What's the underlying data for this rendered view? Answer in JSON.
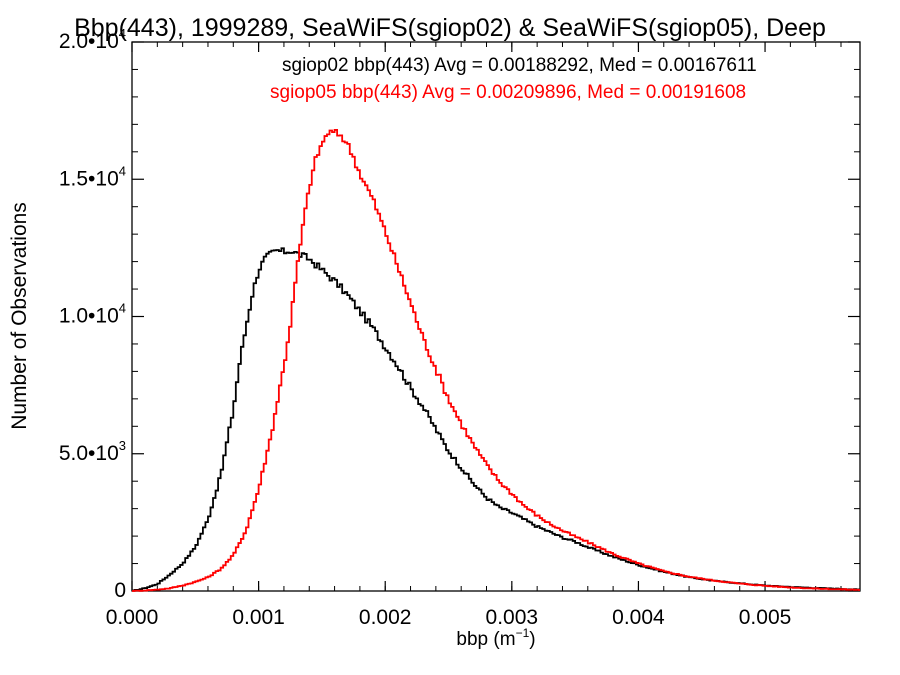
{
  "chart_data": {
    "type": "line",
    "title": "Bbp(443), 1999289, SeaWiFS(sgiop02) & SeaWiFS(sgiop05), Deep",
    "xlabel_base": "bbp (m",
    "xlabel_sup": "−1",
    "xlabel_close": ")",
    "ylabel": "Number of Observations",
    "xlim": [
      0,
      0.00575
    ],
    "ylim": [
      0,
      20000
    ],
    "grid": false,
    "legend_position": "top-right",
    "x_ticks": [
      {
        "value": 0.0,
        "label": "0.000"
      },
      {
        "value": 0.001,
        "label": "0.001"
      },
      {
        "value": 0.002,
        "label": "0.002"
      },
      {
        "value": 0.003,
        "label": "0.003"
      },
      {
        "value": 0.004,
        "label": "0.004"
      },
      {
        "value": 0.005,
        "label": "0.005"
      }
    ],
    "y_ticks": [
      {
        "value": 0,
        "label": "0",
        "exp": ""
      },
      {
        "value": 5000,
        "label": "5.0•10",
        "exp": "3"
      },
      {
        "value": 10000,
        "label": "1.0•10",
        "exp": "4"
      },
      {
        "value": 15000,
        "label": "1.5•10",
        "exp": "4"
      },
      {
        "value": 20000,
        "label": "2.0•10",
        "exp": "4"
      }
    ],
    "series": [
      {
        "name": "sgiop02",
        "legend": "sgiop02 bbp(443) Avg = 0.00188292, Med = 0.00167611",
        "color": "#000000",
        "x": [
          0.0,
          0.0001,
          0.0002,
          0.0003,
          0.0004,
          0.0005,
          0.0006,
          0.0007,
          0.0008,
          0.00085,
          0.0009,
          0.00095,
          0.001,
          0.00105,
          0.0011,
          0.00115,
          0.0012,
          0.00125,
          0.0013,
          0.00135,
          0.0014,
          0.00145,
          0.0015,
          0.0016,
          0.0017,
          0.0018,
          0.0019,
          0.002,
          0.0021,
          0.0022,
          0.0023,
          0.0024,
          0.0025,
          0.0026,
          0.0027,
          0.0028,
          0.0029,
          0.003,
          0.0031,
          0.0032,
          0.0033,
          0.0034,
          0.0035,
          0.0036,
          0.0038,
          0.004,
          0.0042,
          0.0044,
          0.0046,
          0.0048,
          0.005,
          0.0052,
          0.0054,
          0.0056,
          0.00575
        ],
        "y": [
          0,
          100,
          250,
          600,
          1000,
          1600,
          2600,
          4200,
          6600,
          8300,
          9600,
          10800,
          11700,
          12100,
          12300,
          12400,
          12350,
          12400,
          12300,
          12200,
          12100,
          11900,
          11700,
          11300,
          10800,
          10200,
          9600,
          8900,
          8200,
          7400,
          6700,
          5900,
          5100,
          4500,
          3900,
          3400,
          3050,
          2850,
          2600,
          2350,
          2150,
          1950,
          1800,
          1600,
          1250,
          950,
          700,
          500,
          370,
          280,
          200,
          150,
          110,
          80,
          50
        ]
      },
      {
        "name": "sgiop05",
        "legend": "sgiop05 bbp(443) Avg = 0.00209896, Med = 0.00191608",
        "color": "#ff0000",
        "x": [
          0.0,
          0.0001,
          0.0002,
          0.0003,
          0.0004,
          0.0005,
          0.0006,
          0.0007,
          0.0008,
          0.0009,
          0.001,
          0.0011,
          0.0012,
          0.00125,
          0.0013,
          0.00135,
          0.0014,
          0.00145,
          0.0015,
          0.00155,
          0.0016,
          0.00165,
          0.0017,
          0.00175,
          0.0018,
          0.0019,
          0.002,
          0.0021,
          0.0022,
          0.0023,
          0.0024,
          0.0025,
          0.0026,
          0.0027,
          0.0028,
          0.0029,
          0.003,
          0.0031,
          0.0032,
          0.0033,
          0.0034,
          0.0035,
          0.0036,
          0.0038,
          0.004,
          0.0042,
          0.0044,
          0.0046,
          0.0048,
          0.005,
          0.0052,
          0.0054,
          0.0056,
          0.00575
        ],
        "y": [
          0,
          20,
          50,
          100,
          200,
          330,
          500,
          800,
          1300,
          2200,
          3700,
          5700,
          8200,
          9700,
          11600,
          13300,
          14700,
          15700,
          16300,
          16700,
          16700,
          16600,
          16300,
          15800,
          15200,
          14300,
          13100,
          11800,
          10500,
          9200,
          8100,
          7000,
          6100,
          5300,
          4600,
          4000,
          3550,
          3100,
          2750,
          2450,
          2200,
          1980,
          1780,
          1350,
          1000,
          720,
          520,
          380,
          270,
          190,
          130,
          90,
          60,
          40
        ]
      }
    ]
  }
}
